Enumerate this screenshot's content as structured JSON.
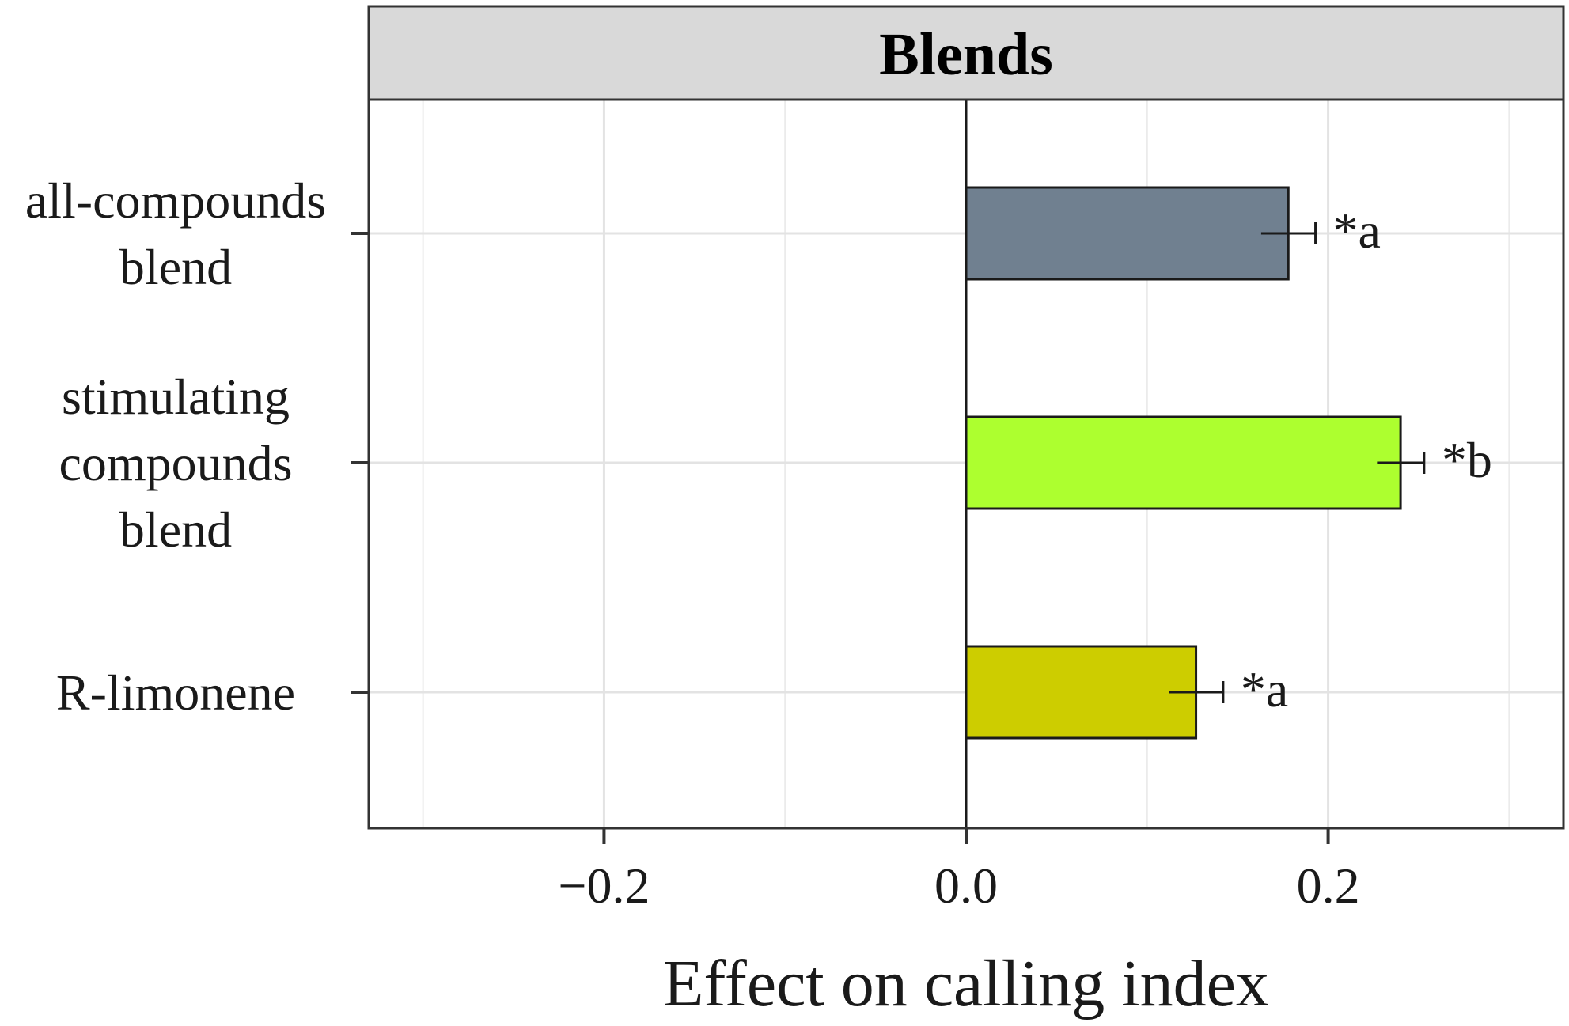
{
  "chart_data": {
    "type": "bar",
    "orientation": "horizontal",
    "panel_title": "Blends",
    "categories": [
      [
        "all-compounds",
        "blend"
      ],
      [
        "stimulating",
        "compounds",
        "blend"
      ],
      [
        "R-limonene"
      ]
    ],
    "values": [
      0.178,
      0.24,
      0.127
    ],
    "errors": [
      0.015,
      0.013,
      0.015
    ],
    "annotations": [
      "*a",
      "*b",
      "*a"
    ],
    "colors": [
      "#708090",
      "#adff2f",
      "#cdcd00"
    ],
    "xlabel": "Effect on calling index",
    "ylabel": "",
    "xlim": [
      -0.33,
      0.33
    ],
    "xticks": [
      -0.2,
      0.0,
      0.2
    ],
    "xtick_labels": [
      "−0.2",
      "0.0",
      "0.2"
    ],
    "grid": true,
    "legend": "none"
  }
}
